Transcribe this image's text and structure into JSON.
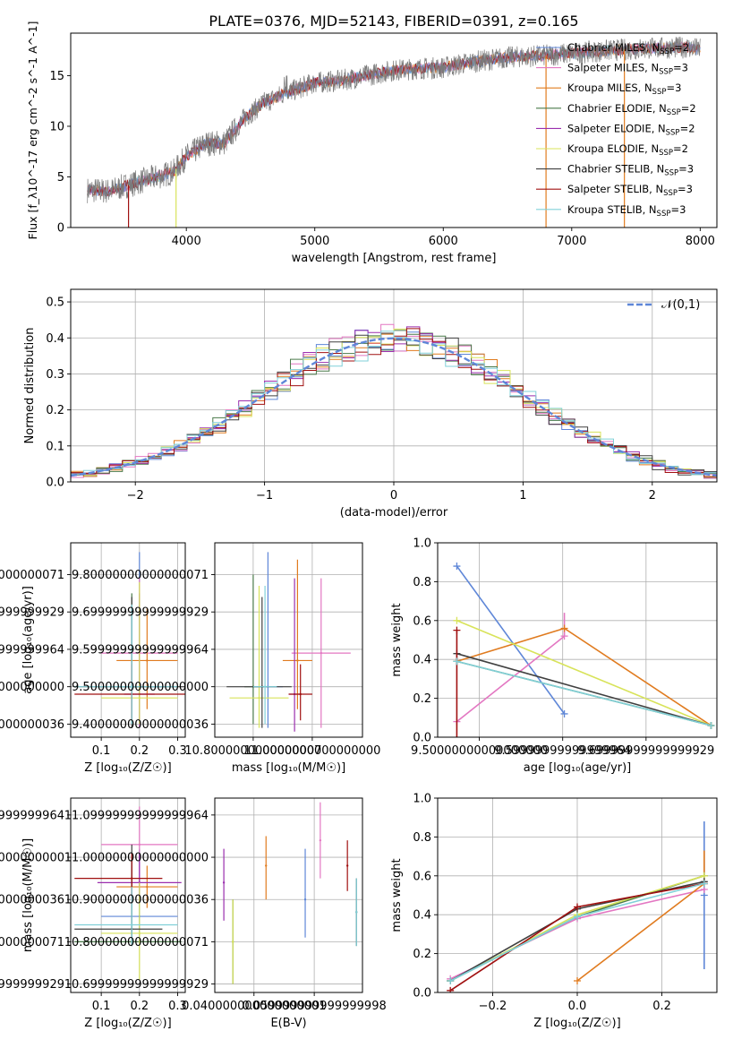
{
  "figure": {
    "title": "PLATE=0376, MJD=52143, FIBERID=0391, z=0.165"
  },
  "colors": {
    "Chabrier MILES": "#5f87d8",
    "Salpeter MILES": "#e377c2",
    "Kroupa MILES": "#e07b1f",
    "Chabrier ELODIE": "#4a7a4a",
    "Salpeter ELODIE": "#9b2fae",
    "Kroupa ELODIE": "#d8e35a",
    "Chabrier STELIB": "#404040",
    "Salpeter STELIB": "#a01010",
    "Kroupa STELIB": "#80d0d8"
  },
  "chart_data": [
    {
      "id": "spectrum",
      "type": "line",
      "xlabel": "wavelength [Angstrom, rest frame]",
      "ylabel": "Flux [f_λ10^-17 erg cm^-2 s^-1 A^-1]",
      "xlim": [
        3100,
        8130
      ],
      "ylim": [
        0,
        19.2
      ],
      "xticks": [
        4000,
        5000,
        6000,
        7000,
        8000
      ],
      "yticks": [
        0,
        5,
        10,
        15
      ],
      "grid": false,
      "legend": "right",
      "legend_entries": [
        {
          "name": "Chabrier MILES",
          "nssp": "2"
        },
        {
          "name": "Salpeter MILES",
          "nssp": "3"
        },
        {
          "name": "Kroupa MILES",
          "nssp": "3"
        },
        {
          "name": "Chabrier ELODIE",
          "nssp": "2"
        },
        {
          "name": "Salpeter ELODIE",
          "nssp": "2"
        },
        {
          "name": "Kroupa ELODIE",
          "nssp": "2"
        },
        {
          "name": "Chabrier STELIB",
          "nssp": "3"
        },
        {
          "name": "Salpeter STELIB",
          "nssp": "3"
        },
        {
          "name": "Kroupa STELIB",
          "nssp": "3"
        }
      ],
      "continuum": [
        [
          3230,
          3.7
        ],
        [
          3400,
          3.6
        ],
        [
          3600,
          4.4
        ],
        [
          3800,
          5.1
        ],
        [
          3900,
          5.5
        ],
        [
          4000,
          7.0
        ],
        [
          4150,
          8.3
        ],
        [
          4300,
          8.4
        ],
        [
          4450,
          10.8
        ],
        [
          4600,
          12.3
        ],
        [
          4800,
          13.4
        ],
        [
          5000,
          14.3
        ],
        [
          5200,
          14.5
        ],
        [
          5400,
          15.0
        ],
        [
          5600,
          15.5
        ],
        [
          5800,
          15.7
        ],
        [
          6000,
          15.8
        ],
        [
          6200,
          16.3
        ],
        [
          6500,
          16.8
        ],
        [
          6800,
          17.0
        ],
        [
          7000,
          17.2
        ],
        [
          7300,
          17.5
        ],
        [
          7600,
          17.7
        ],
        [
          7900,
          17.8
        ],
        [
          8000,
          17.6
        ]
      ],
      "drops": [
        [
          3550,
          0
        ],
        [
          3920,
          0
        ],
        [
          6800,
          0
        ],
        [
          7410,
          0
        ]
      ]
    },
    {
      "id": "residuals",
      "type": "histogram",
      "xlabel": "(data-model)/error",
      "ylabel": "Normed distribution",
      "xlim": [
        -2.5,
        2.5
      ],
      "ylim": [
        0,
        0.535
      ],
      "xticks": [
        -2,
        -1,
        0,
        1,
        2
      ],
      "yticks": [
        0.0,
        0.1,
        0.2,
        0.3,
        0.4,
        0.5
      ],
      "grid": true,
      "legend": "top-right",
      "reference_label": "𝒩(0,1)",
      "bin_width": 0.1
    },
    {
      "id": "age-vs-Z",
      "type": "scatter",
      "xlabel": "Z [log₁₀(Z/Z☉)]",
      "ylabel": "age  [log₁₀(age/yr)]",
      "xlim": [
        0.02,
        0.32
      ],
      "ylim": [
        9.365,
        9.885
      ],
      "xticks": [
        0.1,
        0.2,
        0.3
      ],
      "yticks": [
        9.4,
        9.5,
        9.6,
        9.7,
        9.8
      ],
      "grid": true,
      "points": [
        {
          "s": "Chabrier MILES",
          "x": 0.2,
          "y": 9.5,
          "xerr": [
            0.06,
            0.06
          ],
          "yerr": [
            0.11,
            0.36
          ]
        },
        {
          "s": "Salpeter MILES",
          "x": 0.2,
          "y": 9.59,
          "xerr": [
            0.1,
            0.1
          ],
          "yerr": [
            0.2,
            0.2
          ]
        },
        {
          "s": "Kroupa MILES",
          "x": 0.22,
          "y": 9.57,
          "xerr": [
            0.08,
            0.08
          ],
          "yerr": [
            0.13,
            0.14
          ]
        },
        {
          "s": "Chabrier ELODIE",
          "x": 0.18,
          "y": 9.5,
          "xerr": [
            0.03,
            0.03
          ],
          "yerr": [
            0.1,
            0.25
          ]
        },
        {
          "s": "Salpeter ELODIE",
          "x": 0.2,
          "y": 9.48,
          "xerr": [
            0.04,
            0.04
          ],
          "yerr": [
            0.08,
            0.27
          ]
        },
        {
          "s": "Kroupa ELODIE",
          "x": 0.2,
          "y": 9.47,
          "xerr": [
            0.1,
            0.1
          ],
          "yerr": [
            0.07,
            0.31
          ]
        },
        {
          "s": "Chabrier STELIB",
          "x": 0.18,
          "y": 9.5,
          "xerr": [
            0.15,
            0.15
          ],
          "yerr": [
            0.11,
            0.24
          ]
        },
        {
          "s": "Salpeter STELIB",
          "x": 0.18,
          "y": 9.48,
          "xerr": [
            0.15,
            0.15
          ],
          "yerr": [
            0.07,
            0.08
          ]
        },
        {
          "s": "Kroupa STELIB",
          "x": 0.18,
          "y": 9.5,
          "xerr": [
            0.15,
            0.12
          ],
          "yerr": [
            0.1,
            0.22
          ]
        }
      ]
    },
    {
      "id": "age-vs-mass",
      "type": "scatter",
      "xlabel": "mass [log₁₀(M/M☉)]",
      "ylabel": "",
      "xlim": [
        10.67,
        11.17
      ],
      "ylim": [
        9.365,
        9.885
      ],
      "xticks": [
        10.8,
        11.0
      ],
      "yticks": [
        9.4,
        9.5,
        9.6,
        9.7,
        9.8
      ],
      "grid": true,
      "points": [
        {
          "s": "Chabrier MILES",
          "x": 10.85,
          "y": 9.5,
          "xerr": [
            0.05,
            0.05
          ],
          "yerr": [
            0.11,
            0.36
          ]
        },
        {
          "s": "Salpeter MILES",
          "x": 11.03,
          "y": 9.59,
          "xerr": [
            0.1,
            0.1
          ],
          "yerr": [
            0.2,
            0.2
          ]
        },
        {
          "s": "Kroupa MILES",
          "x": 10.95,
          "y": 9.57,
          "xerr": [
            0.05,
            0.05
          ],
          "yerr": [
            0.13,
            0.27
          ]
        },
        {
          "s": "Chabrier ELODIE",
          "x": 10.8,
          "y": 9.5,
          "xerr": [
            0.03,
            0.03
          ],
          "yerr": [
            0.1,
            0.3
          ]
        },
        {
          "s": "Salpeter ELODIE",
          "x": 10.94,
          "y": 9.48,
          "xerr": [
            0.02,
            0.02
          ],
          "yerr": [
            0.1,
            0.31
          ]
        },
        {
          "s": "Kroupa ELODIE",
          "x": 10.82,
          "y": 9.47,
          "xerr": [
            0.1,
            0.1
          ],
          "yerr": [
            0.08,
            0.3
          ]
        },
        {
          "s": "Chabrier STELIB",
          "x": 10.83,
          "y": 9.5,
          "xerr": [
            0.12,
            0.1
          ],
          "yerr": [
            0.11,
            0.24
          ]
        },
        {
          "s": "Salpeter STELIB",
          "x": 10.96,
          "y": 9.48,
          "xerr": [
            0.04,
            0.04
          ],
          "yerr": [
            0.07,
            0.08
          ]
        },
        {
          "s": "Kroupa STELIB",
          "x": 10.84,
          "y": 9.5,
          "xerr": [
            0.04,
            0.04
          ],
          "yerr": [
            0.1,
            0.27
          ]
        }
      ]
    },
    {
      "id": "mass-weight-vs-age",
      "type": "line",
      "xlabel": "age  [log₁₀(age/yr)]",
      "ylabel": "mass weight",
      "xlim": [
        9.45,
        9.785
      ],
      "ylim": [
        0,
        1.0
      ],
      "xticks": [
        9.5,
        9.6,
        9.7
      ],
      "yticks": [
        0.0,
        0.2,
        0.4,
        0.6,
        0.8,
        1.0
      ],
      "grid": true,
      "series": [
        {
          "s": "Chabrier MILES",
          "x": [
            9.473,
            9.602
          ],
          "y": [
            0.88,
            0.12
          ]
        },
        {
          "s": "Salpeter MILES",
          "x": [
            9.473,
            9.602
          ],
          "y": [
            0.08,
            0.52
          ],
          "yerr": [
            0,
            0.12
          ]
        },
        {
          "s": "Kroupa MILES",
          "x": [
            9.473,
            9.602,
            9.778
          ],
          "y": [
            0.39,
            0.56,
            0.06
          ]
        },
        {
          "s": "Chabrier ELODIE",
          "x": [
            9.473,
            9.778
          ],
          "y": [
            0.39,
            0.06
          ]
        },
        {
          "s": "Kroupa ELODIE",
          "x": [
            9.473,
            9.778
          ],
          "y": [
            0.6,
            0.06
          ]
        },
        {
          "s": "Chabrier STELIB",
          "x": [
            9.473,
            9.778
          ],
          "y": [
            0.43,
            0.06
          ]
        },
        {
          "s": "Salpeter STELIB",
          "x": [
            9.473
          ],
          "y": [
            0.55
          ],
          "yerr": [
            0.55,
            0
          ]
        },
        {
          "s": "Kroupa STELIB",
          "x": [
            9.473,
            9.778
          ],
          "y": [
            0.39,
            0.06
          ]
        }
      ]
    },
    {
      "id": "mass-vs-Z",
      "type": "scatter",
      "xlabel": "Z [log₁₀(Z/Z☉)]",
      "ylabel": "mass [log₁₀(M/M☉)]",
      "xlim": [
        0.02,
        0.32
      ],
      "ylim": [
        10.68,
        11.14
      ],
      "xticks": [
        0.1,
        0.2,
        0.3
      ],
      "yticks": [
        10.7,
        10.8,
        10.9,
        11.0,
        11.1
      ],
      "grid": true,
      "points": [
        {
          "s": "Chabrier MILES",
          "x": 0.2,
          "y": 10.86,
          "xerr": [
            0.1,
            0.1
          ],
          "yerr": [
            0.06,
            0.16
          ]
        },
        {
          "s": "Salpeter MILES",
          "x": 0.2,
          "y": 11.03,
          "xerr": [
            0.1,
            0.1
          ],
          "yerr": [
            0.1,
            0.09
          ]
        },
        {
          "s": "Kroupa MILES",
          "x": 0.22,
          "y": 10.93,
          "xerr": [
            0.08,
            0.08
          ],
          "yerr": [
            0.05,
            0.05
          ]
        },
        {
          "s": "Chabrier ELODIE",
          "x": 0.18,
          "y": 10.8,
          "xerr": [
            0.15,
            0.13
          ],
          "yerr": [
            0.01,
            0.2
          ]
        },
        {
          "s": "Salpeter ELODIE",
          "x": 0.2,
          "y": 10.94,
          "xerr": [
            0.11,
            0.11
          ],
          "yerr": [
            0.05,
            0.07
          ]
        },
        {
          "s": "Kroupa ELODIE",
          "x": 0.2,
          "y": 10.82,
          "xerr": [
            0.1,
            0.1
          ],
          "yerr": [
            0.11,
            0.12
          ]
        },
        {
          "s": "Chabrier STELIB",
          "x": 0.18,
          "y": 10.83,
          "xerr": [
            0.15,
            0.08
          ],
          "yerr": [
            0.04,
            0.2
          ]
        },
        {
          "s": "Salpeter STELIB",
          "x": 0.18,
          "y": 10.95,
          "xerr": [
            0.15,
            0.08
          ],
          "yerr": [
            0.06,
            0.06
          ]
        },
        {
          "s": "Kroupa STELIB",
          "x": 0.18,
          "y": 10.84,
          "xerr": [
            0.15,
            0.12
          ],
          "yerr": [
            0.05,
            0.09
          ]
        }
      ]
    },
    {
      "id": "mass-vs-ebv",
      "type": "scatter",
      "xlabel": "E(B-V)",
      "ylabel": "",
      "xlim": [
        0.027,
        0.076
      ],
      "ylim": [
        10.68,
        11.14
      ],
      "xticks": [
        0.04,
        0.06
      ],
      "yticks": [
        10.7,
        10.8,
        10.9,
        11.0,
        11.1
      ],
      "grid": true,
      "points": [
        {
          "s": "Chabrier MILES",
          "x": 0.057,
          "y": 10.9,
          "yerr": [
            0.09,
            0.12
          ]
        },
        {
          "s": "Salpeter MILES",
          "x": 0.062,
          "y": 11.04,
          "yerr": [
            0.09,
            0.09
          ]
        },
        {
          "s": "Kroupa MILES",
          "x": 0.044,
          "y": 10.98,
          "yerr": [
            0.08,
            0.07
          ]
        },
        {
          "s": "Chabrier ELODIE",
          "x": 0.033,
          "y": 10.8,
          "yerr": [
            0.1,
            0.1
          ]
        },
        {
          "s": "Salpeter ELODIE",
          "x": 0.03,
          "y": 10.94,
          "yerr": [
            0.09,
            0.08
          ]
        },
        {
          "s": "Kroupa ELODIE",
          "x": 0.033,
          "y": 10.8,
          "yerr": [
            0.1,
            0.1
          ]
        },
        {
          "s": "Chabrier STELIB",
          "x": 0.074,
          "y": 10.87,
          "yerr": [
            0.08,
            0.08
          ]
        },
        {
          "s": "Salpeter STELIB",
          "x": 0.071,
          "y": 10.98,
          "yerr": [
            0.06,
            0.06
          ]
        },
        {
          "s": "Kroupa STELIB",
          "x": 0.074,
          "y": 10.87,
          "yerr": [
            0.08,
            0.08
          ]
        }
      ]
    },
    {
      "id": "mass-weight-vs-Z",
      "type": "line",
      "xlabel": "Z [log₁₀(Z/Z☉)]",
      "ylabel": "mass weight",
      "xlim": [
        -0.33,
        0.33
      ],
      "ylim": [
        0,
        1.0
      ],
      "xticks": [
        -0.2,
        0.0,
        0.2
      ],
      "yticks": [
        0.0,
        0.2,
        0.4,
        0.6,
        0.8,
        1.0
      ],
      "grid": true,
      "series": [
        {
          "s": "Chabrier MILES",
          "x": [
            0.3
          ],
          "y": [
            0.5
          ],
          "yerr": [
            0.38,
            0.38
          ]
        },
        {
          "s": "Salpeter MILES",
          "x": [
            -0.3,
            0.0,
            0.3
          ],
          "y": [
            0.07,
            0.38,
            0.53
          ],
          "yerr": [
            0,
            0,
            0.45
          ]
        },
        {
          "s": "Kroupa MILES",
          "x": [
            0.0,
            0.3
          ],
          "y": [
            0.06,
            0.56
          ],
          "yerr": [
            0,
            0.17
          ]
        },
        {
          "s": "Chabrier ELODIE",
          "x": [
            -0.3,
            0.0,
            0.3
          ],
          "y": [
            0.06,
            0.39,
            0.6
          ]
        },
        {
          "s": "Kroupa ELODIE",
          "x": [
            -0.3,
            0.0,
            0.3
          ],
          "y": [
            0.06,
            0.4,
            0.6
          ]
        },
        {
          "s": "Chabrier STELIB",
          "x": [
            -0.3,
            0.0,
            0.3
          ],
          "y": [
            0.06,
            0.43,
            0.57
          ]
        },
        {
          "s": "Salpeter STELIB",
          "x": [
            -0.3,
            0.0,
            0.3
          ],
          "y": [
            0.01,
            0.44,
            0.56
          ]
        },
        {
          "s": "Kroupa STELIB",
          "x": [
            -0.3,
            0.0,
            0.3
          ],
          "y": [
            0.06,
            0.39,
            0.56
          ]
        }
      ]
    }
  ]
}
